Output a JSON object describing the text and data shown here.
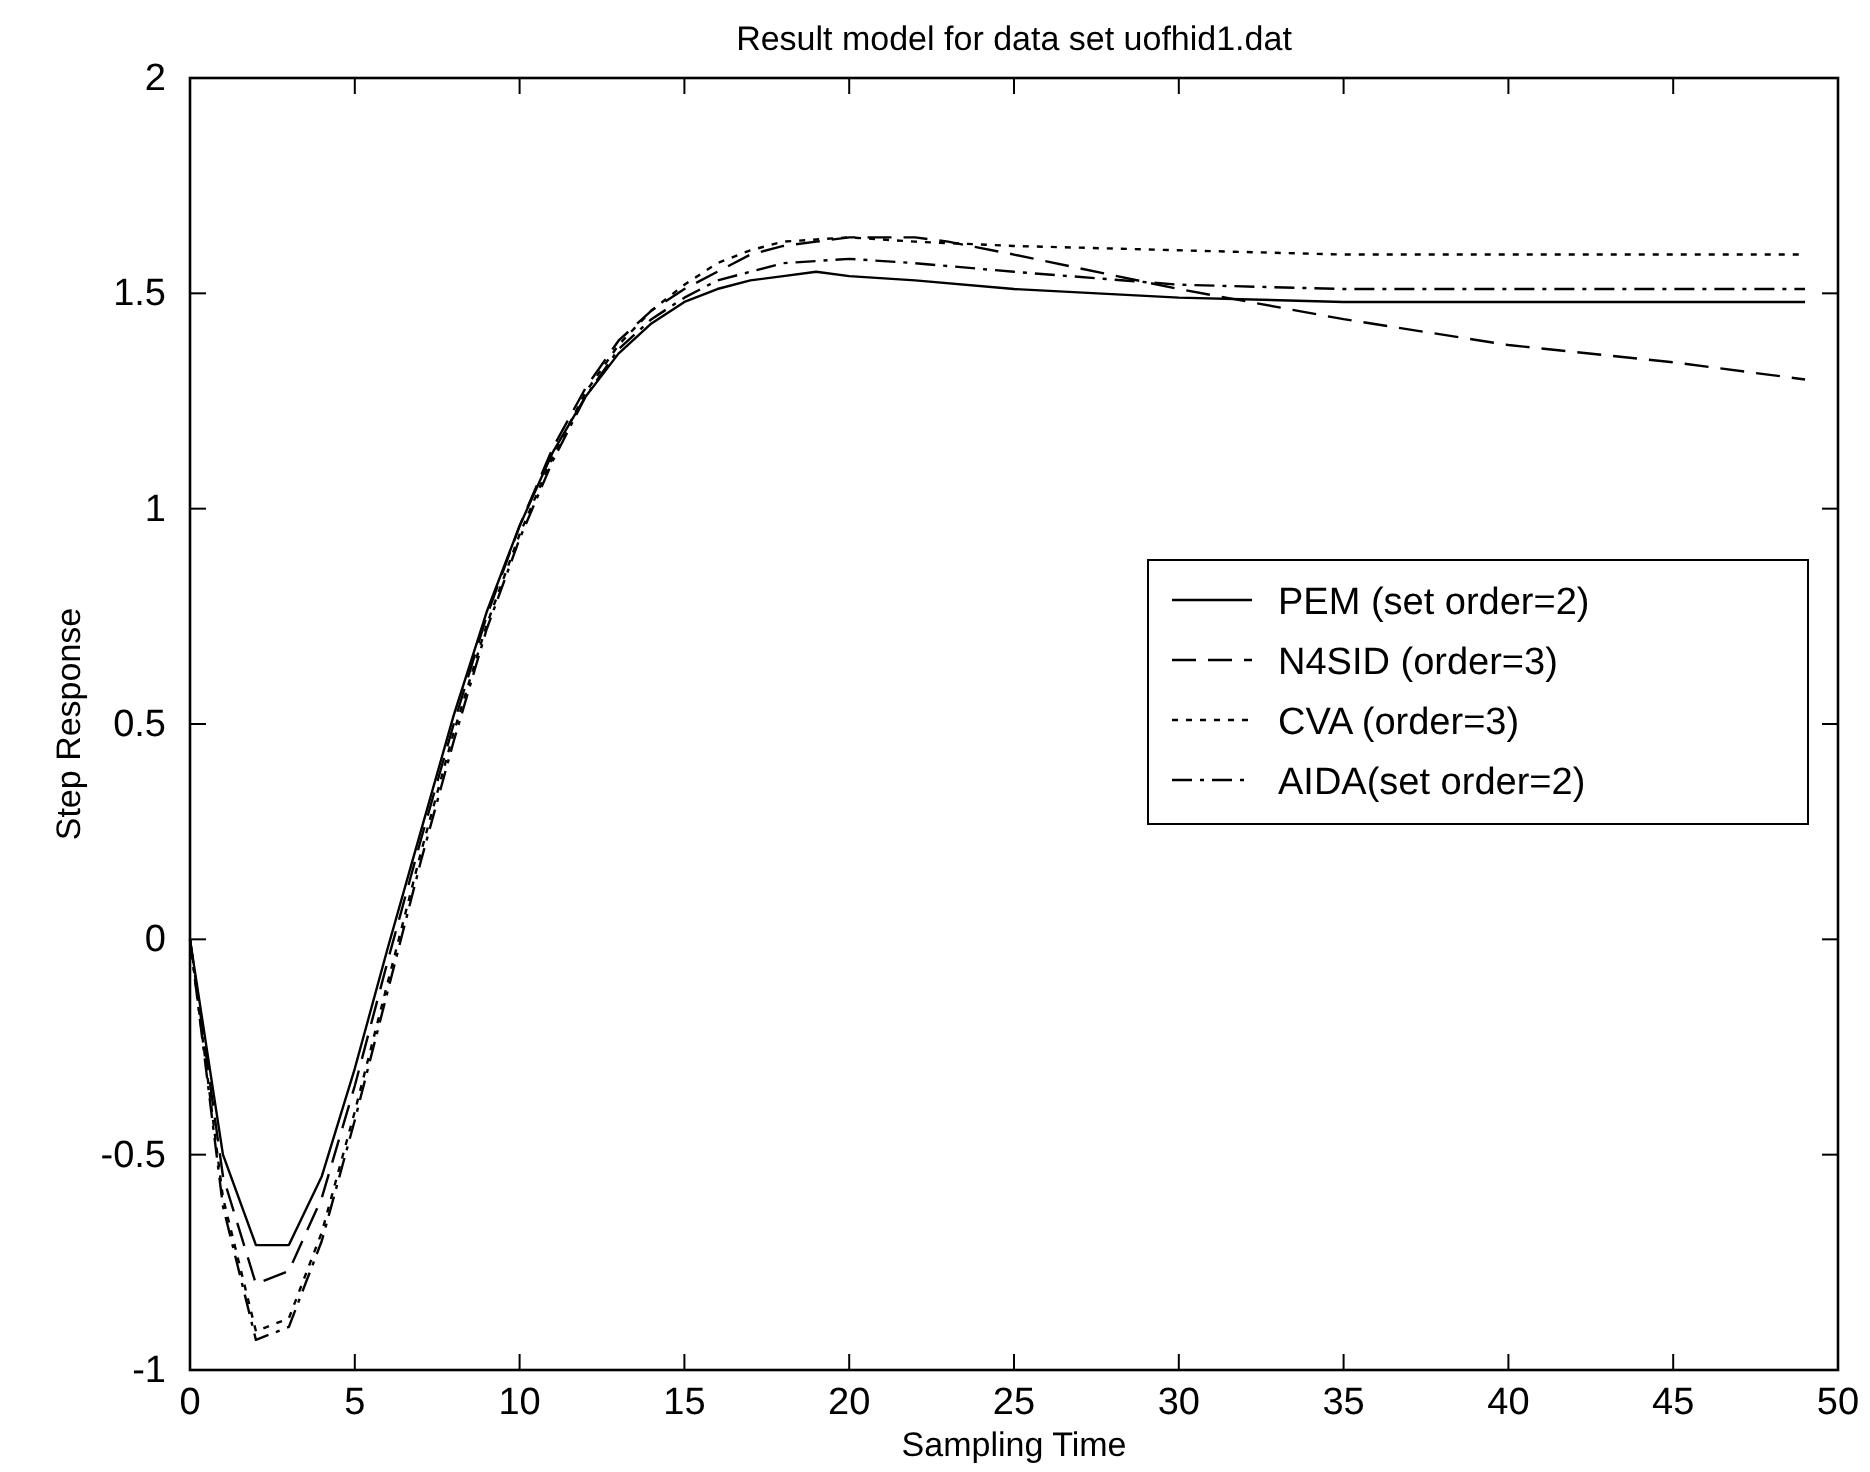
{
  "chart_data": {
    "type": "line",
    "title": "Result model for data set uofhid1.dat",
    "xlabel": "Sampling Time",
    "ylabel": "Step Response",
    "xlim": [
      0,
      50
    ],
    "xticks": [
      0,
      5,
      10,
      15,
      20,
      25,
      30,
      35,
      40,
      45,
      50
    ],
    "ylim": [
      -1,
      2
    ],
    "yticks": [
      -1,
      -0.5,
      0,
      0.5,
      1,
      1.5,
      2
    ],
    "grid": false,
    "legend": "right",
    "series": [
      {
        "name": "PEM (set order=2)",
        "color": "#000000",
        "line_style": "solid",
        "x": [
          0,
          1,
          2,
          3,
          4,
          5,
          6,
          7,
          8,
          9,
          10,
          11,
          12,
          13,
          14,
          15,
          16,
          17,
          18,
          19,
          20,
          22,
          25,
          30,
          35,
          40,
          45,
          49
        ],
        "values": [
          0,
          -0.5,
          -0.71,
          -0.71,
          -0.55,
          -0.3,
          -0.02,
          0.25,
          0.52,
          0.76,
          0.96,
          1.13,
          1.26,
          1.36,
          1.43,
          1.48,
          1.51,
          1.53,
          1.54,
          1.55,
          1.54,
          1.53,
          1.51,
          1.49,
          1.48,
          1.48,
          1.48,
          1.48
        ]
      },
      {
        "name": "N4SID (order=3)",
        "color": "#000000",
        "line_style": "dashed",
        "x": [
          0,
          1,
          2,
          3,
          4,
          5,
          6,
          7,
          8,
          9,
          10,
          11,
          12,
          13,
          14,
          15,
          16,
          17,
          18,
          19,
          20,
          22,
          23,
          25,
          30,
          35,
          40,
          45,
          49
        ],
        "values": [
          0,
          -0.55,
          -0.8,
          -0.77,
          -0.6,
          -0.34,
          -0.05,
          0.23,
          0.5,
          0.75,
          0.96,
          1.14,
          1.28,
          1.39,
          1.46,
          1.51,
          1.55,
          1.59,
          1.61,
          1.62,
          1.63,
          1.63,
          1.62,
          1.59,
          1.51,
          1.44,
          1.38,
          1.34,
          1.3
        ]
      },
      {
        "name": "CVA (order=3)",
        "color": "#000000",
        "line_style": "dotted",
        "x": [
          0,
          1,
          2,
          3,
          4,
          5,
          6,
          7,
          8,
          9,
          10,
          11,
          12,
          13,
          14,
          15,
          16,
          17,
          18,
          20,
          22,
          25,
          30,
          35,
          40,
          49
        ],
        "values": [
          0,
          -0.6,
          -0.91,
          -0.88,
          -0.68,
          -0.4,
          -0.1,
          0.2,
          0.48,
          0.73,
          0.94,
          1.12,
          1.27,
          1.38,
          1.46,
          1.52,
          1.57,
          1.6,
          1.62,
          1.63,
          1.62,
          1.61,
          1.6,
          1.59,
          1.59,
          1.59
        ]
      },
      {
        "name": "AIDA(set order=2)",
        "color": "#000000",
        "line_style": "dashdot",
        "x": [
          0,
          1,
          2,
          3,
          4,
          5,
          6,
          7,
          8,
          9,
          10,
          11,
          12,
          13,
          14,
          15,
          16,
          17,
          18,
          20,
          22,
          25,
          30,
          35,
          40,
          49
        ],
        "values": [
          0,
          -0.62,
          -0.93,
          -0.9,
          -0.7,
          -0.42,
          -0.12,
          0.18,
          0.46,
          0.72,
          0.93,
          1.11,
          1.26,
          1.37,
          1.44,
          1.49,
          1.53,
          1.55,
          1.57,
          1.58,
          1.57,
          1.55,
          1.52,
          1.51,
          1.51,
          1.51
        ]
      }
    ]
  }
}
